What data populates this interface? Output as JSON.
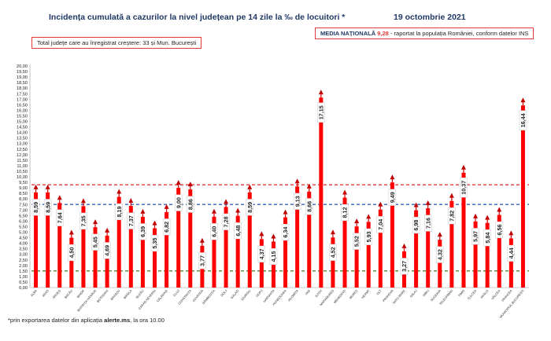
{
  "header": {
    "title": "Incidența cumulată a cazurilor la nivel județean pe 14 zile la ‰ de locuitori *",
    "date": "19 octombrie 2021"
  },
  "note": {
    "text": "Total județe care au înregistrat creștere:  33 și Mun. București"
  },
  "media": {
    "label": "MEDIA NAȚIONALĂ",
    "value": "9,28",
    "suffix": " - raportat la populația României, conform datelor INS"
  },
  "footer": {
    "pre": "*prin exportarea datelor din aplicația ",
    "bold": "alerte.ms",
    "post": ", la ora 10.00"
  },
  "colors": {
    "bar": "#ff0000",
    "arrow": "#c00000",
    "media_line": "#e03a3a",
    "blue_line": "#4472c4",
    "green_line": "#548235",
    "axis": "#999999"
  },
  "chart_data": {
    "type": "bar",
    "categories": [
      "ALBA",
      "ARAD",
      "ARGEȘ",
      "BACĂU",
      "BIHOR",
      "BISTRIȚA-NĂSĂUD",
      "BOTOȘANI",
      "BRAȘOV",
      "BRĂILA",
      "BUZĂU",
      "CARAȘ-SEVERIN",
      "CĂLĂRAȘI",
      "CLUJ",
      "CONSTANȚA",
      "COVASNA",
      "DÂMBOVIȚA",
      "DOLJ",
      "GALAȚI",
      "GIURGIU",
      "GORJ",
      "HARGHITA",
      "HUNEDOARA",
      "IALOMIȚA",
      "IAȘI",
      "ILFOV",
      "MARAMUREȘ",
      "MEHEDINȚI",
      "MUREȘ",
      "NEAMȚ",
      "OLT",
      "PRAHOVA",
      "SATU MARE",
      "SĂLAJ",
      "SIBIU",
      "SUCEAVA",
      "TELEORMAN",
      "TIMIȘ",
      "TULCEA",
      "VASLUI",
      "VÂLCEA",
      "VRANCEA",
      "MUNICIPIUL BUCUREȘTI"
    ],
    "values": [
      8.59,
      8.59,
      7.64,
      4.5,
      7.35,
      5.45,
      4.69,
      8.19,
      7.37,
      6.39,
      5.35,
      6.82,
      9.0,
      8.86,
      3.77,
      6.4,
      7.28,
      6.48,
      8.59,
      4.37,
      4.15,
      6.34,
      9.13,
      8.66,
      17.15,
      4.52,
      8.12,
      5.52,
      5.93,
      7.04,
      9.49,
      3.27,
      6.98,
      7.16,
      4.32,
      7.82,
      10.37,
      5.97,
      5.84,
      6.56,
      4.44,
      16.44
    ],
    "labels": [
      "8,59",
      "8,59",
      "7,64",
      "4,50",
      "7,35",
      "5,45",
      "4,69",
      "8,19",
      "7,37",
      "6,39",
      "5,35",
      "6,82",
      "9,00",
      "8,86",
      "3,77",
      "6,40",
      "7,28",
      "6,48",
      "8,59",
      "4,37",
      "4,15",
      "6,34",
      "9,13",
      "8,66",
      "17,15",
      "4,52",
      "8,12",
      "5,52",
      "5,93",
      "7,04",
      "9,49",
      "3,27",
      "6,98",
      "7,16",
      "4,32",
      "7,82",
      "10,37",
      "5,97",
      "5,84",
      "6,56",
      "4,44",
      "16,44"
    ],
    "arrows": [
      true,
      true,
      true,
      true,
      true,
      true,
      true,
      true,
      true,
      true,
      true,
      true,
      true,
      true,
      true,
      true,
      true,
      true,
      true,
      true,
      true,
      true,
      true,
      true,
      true,
      true,
      true,
      true,
      true,
      true,
      true,
      true,
      true,
      true,
      true,
      true,
      true,
      true,
      true,
      true,
      true,
      true
    ],
    "y_ticks": [
      "0,00",
      "0,50",
      "1,00",
      "1,50",
      "2,00",
      "2,50",
      "3,00",
      "3,50",
      "4,00",
      "4,50",
      "5,00",
      "5,50",
      "6,00",
      "6,50",
      "7,00",
      "7,50",
      "8,00",
      "8,50",
      "9,00",
      "9,50",
      "10,00",
      "10,50",
      "11,00",
      "11,50",
      "12,00",
      "12,50",
      "13,00",
      "13,50",
      "14,00",
      "14,50",
      "15,00",
      "15,50",
      "16,00",
      "16,50",
      "17,00",
      "17,50",
      "18,00",
      "18,50",
      "19,00",
      "19,50",
      "20,00"
    ],
    "ylim": [
      0,
      20
    ],
    "reference_lines": [
      {
        "value": 9.28,
        "style": "dashed",
        "color": "#e03a3a"
      },
      {
        "value": 7.5,
        "style": "dashed",
        "color": "#4472c4"
      },
      {
        "value": 1.5,
        "style": "dashed",
        "color": "#548235"
      }
    ],
    "grid": false,
    "legend": "none"
  }
}
